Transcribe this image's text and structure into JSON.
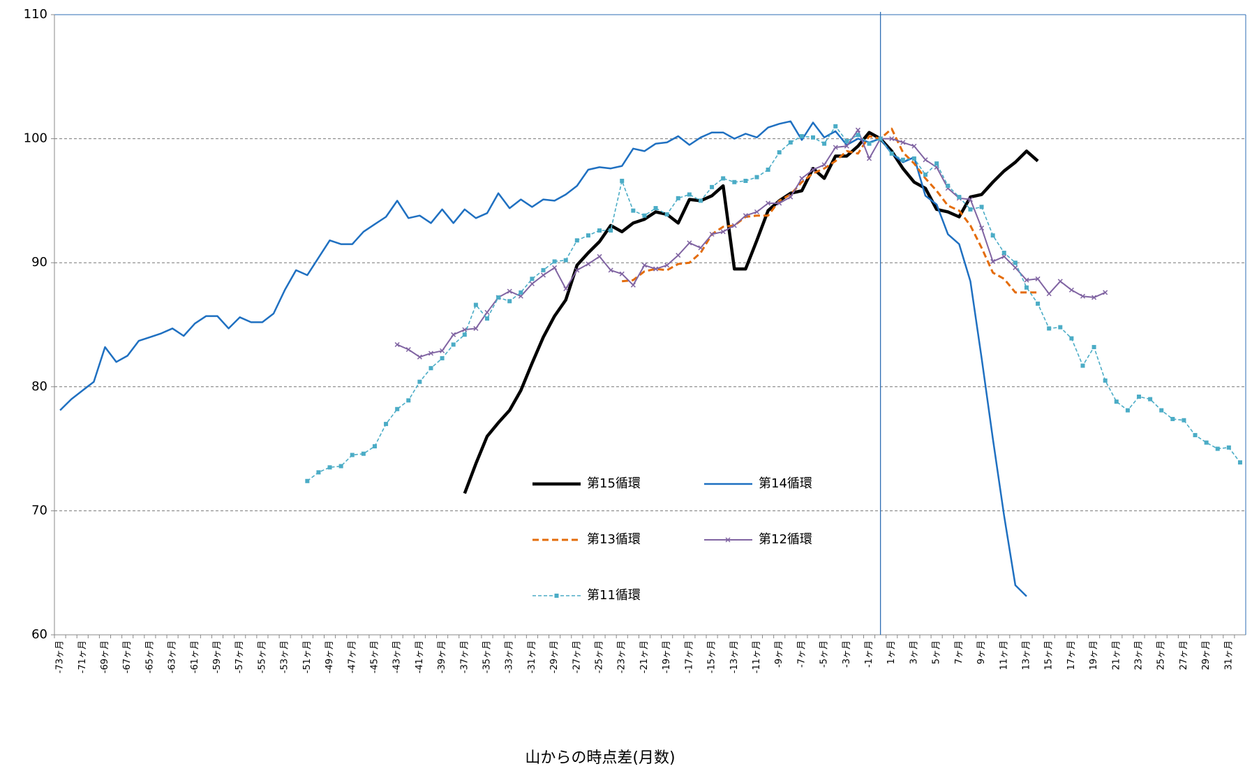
{
  "chart_data": {
    "type": "line",
    "x_label": "山からの時点差(月数)",
    "categories": [
      "-73ヶ月",
      null,
      "-71ヶ月",
      null,
      "-69ヶ月",
      null,
      "-67ヶ月",
      null,
      "-65ヶ月",
      null,
      "-63ヶ月",
      null,
      "-61ヶ月",
      null,
      "-59ヶ月",
      null,
      "-57ヶ月",
      null,
      "-55ヶ月",
      null,
      "-53ヶ月",
      null,
      "-51ヶ月",
      null,
      "-49ヶ月",
      null,
      "-47ヶ月",
      null,
      "-45ヶ月",
      null,
      "-43ヶ月",
      null,
      "-41ヶ月",
      null,
      "-39ヶ月",
      null,
      "-37ヶ月",
      null,
      "-35ヶ月",
      null,
      "-33ヶ月",
      null,
      "-31ヶ月",
      null,
      "-29ヶ月",
      null,
      "-27ヶ月",
      null,
      "-25ヶ月",
      null,
      "-23ヶ月",
      null,
      "-21ヶ月",
      null,
      "-19ヶ月",
      null,
      "-17ヶ月",
      null,
      "-15ヶ月",
      null,
      "-13ヶ月",
      null,
      "-11ヶ月",
      null,
      "-9ヶ月",
      null,
      "-7ヶ月",
      null,
      "-5ヶ月",
      null,
      "-3ヶ月",
      null,
      "-1ヶ月",
      null,
      "1ヶ月",
      null,
      "3ヶ月",
      null,
      "5ヶ月",
      null,
      "7ヶ月",
      null,
      "9ヶ月",
      null,
      "11ヶ月",
      null,
      "13ヶ月",
      null,
      "15ヶ月",
      null,
      "17ヶ月",
      null,
      "19ヶ月",
      null,
      "21ヶ月",
      null,
      "23ヶ月",
      null,
      "25ヶ月",
      null,
      "27ヶ月",
      null,
      "29ヶ月",
      null,
      "31ヶ月",
      null
    ],
    "series": [
      {
        "name": "第15循環",
        "color": "#000000",
        "values": [
          null,
          null,
          null,
          null,
          null,
          null,
          null,
          null,
          null,
          null,
          null,
          null,
          null,
          null,
          null,
          null,
          null,
          null,
          null,
          null,
          null,
          null,
          null,
          null,
          null,
          null,
          null,
          null,
          null,
          null,
          null,
          null,
          null,
          null,
          null,
          null,
          71.4,
          73.8,
          76.0,
          77.1,
          78.1,
          79.7,
          81.9,
          84.0,
          85.7,
          87.0,
          89.8,
          90.8,
          91.7,
          93.0,
          92.5,
          93.2,
          93.5,
          94.1,
          93.9,
          93.2,
          95.1,
          95.0,
          95.4,
          96.2,
          89.5,
          89.5,
          91.8,
          94.2,
          95.0,
          95.6,
          95.8,
          97.6,
          96.8,
          98.6,
          98.6,
          99.4,
          100.5,
          100,
          99.0,
          97.6,
          96.5,
          96.0,
          94.3,
          94.1,
          93.7,
          95.3,
          95.5,
          96.5,
          97.4,
          98.1,
          99.0,
          98.2,
          null,
          null,
          null,
          null,
          null,
          null,
          null,
          null,
          null,
          null,
          null,
          null,
          null,
          null,
          null,
          null,
          null,
          null
        ]
      },
      {
        "name": "第14循環",
        "color": "#1f70c1",
        "values": [
          78.1,
          79.0,
          79.7,
          80.4,
          83.2,
          82.0,
          82.5,
          83.7,
          84.0,
          84.3,
          84.7,
          84.1,
          85.1,
          85.7,
          85.7,
          84.7,
          85.6,
          85.2,
          85.2,
          85.9,
          87.8,
          89.4,
          89.0,
          90.4,
          91.8,
          91.5,
          91.5,
          92.5,
          93.1,
          93.7,
          95.0,
          93.6,
          93.8,
          93.2,
          94.3,
          93.2,
          94.3,
          93.6,
          94.0,
          95.6,
          94.4,
          95.1,
          94.5,
          95.1,
          95.0,
          95.5,
          96.2,
          97.5,
          97.7,
          97.6,
          97.8,
          99.2,
          99.0,
          99.6,
          99.7,
          100.2,
          99.5,
          100.1,
          100.5,
          100.5,
          100.0,
          100.4,
          100.1,
          100.9,
          101.2,
          101.4,
          99.9,
          101.3,
          100.1,
          100.6,
          99.5,
          100.0,
          99.7,
          100,
          98.8,
          98.1,
          98.5,
          95.4,
          94.7,
          92.3,
          91.5,
          88.5,
          82.3,
          75.8,
          69.6,
          64.0,
          63.1,
          null,
          null,
          null,
          null,
          null,
          null,
          null,
          null,
          null,
          null,
          null,
          null,
          null,
          null,
          null,
          null,
          null,
          null,
          null
        ]
      },
      {
        "name": "第13循環",
        "color": "#e46c0a",
        "values": [
          null,
          null,
          null,
          null,
          null,
          null,
          null,
          null,
          null,
          null,
          null,
          null,
          null,
          null,
          null,
          null,
          null,
          null,
          null,
          null,
          null,
          null,
          null,
          null,
          null,
          null,
          null,
          null,
          null,
          null,
          null,
          null,
          null,
          null,
          null,
          null,
          null,
          null,
          null,
          null,
          null,
          null,
          null,
          null,
          null,
          null,
          null,
          null,
          null,
          null,
          88.5,
          88.6,
          89.3,
          89.5,
          89.4,
          89.9,
          90.0,
          90.8,
          92.3,
          92.9,
          93.0,
          93.7,
          93.8,
          93.8,
          95.0,
          95.5,
          96.5,
          97.2,
          97.6,
          98.2,
          99.0,
          98.8,
          100.2,
          100,
          100.8,
          98.9,
          98.0,
          96.8,
          95.8,
          94.6,
          94.2,
          93.0,
          91.2,
          89.2,
          88.7,
          87.6,
          87.6,
          87.6,
          null,
          null,
          null,
          null,
          null,
          null,
          null,
          null,
          null,
          null,
          null,
          null,
          null,
          null,
          null,
          null,
          null,
          null
        ]
      },
      {
        "name": "第12循環",
        "color": "#8064a2",
        "values": [
          null,
          null,
          null,
          null,
          null,
          null,
          null,
          null,
          null,
          null,
          null,
          null,
          null,
          null,
          null,
          null,
          null,
          null,
          null,
          null,
          null,
          null,
          null,
          null,
          null,
          null,
          null,
          null,
          null,
          null,
          83.4,
          83.0,
          82.4,
          82.7,
          82.9,
          84.2,
          84.6,
          84.7,
          86.0,
          87.2,
          87.7,
          87.3,
          88.3,
          89.0,
          89.6,
          87.9,
          89.4,
          89.9,
          90.5,
          89.4,
          89.1,
          88.2,
          89.8,
          89.5,
          89.8,
          90.6,
          91.6,
          91.2,
          92.3,
          92.5,
          93.0,
          93.8,
          94.1,
          94.8,
          94.8,
          95.3,
          96.8,
          97.5,
          97.9,
          99.3,
          99.4,
          100.7,
          98.4,
          100,
          100.0,
          99.7,
          99.4,
          98.3,
          97.7,
          96.0,
          95.2,
          95.1,
          92.8,
          90.1,
          90.5,
          89.6,
          88.6,
          88.7,
          87.5,
          88.5,
          87.8,
          87.3,
          87.2,
          87.6,
          null,
          null,
          null,
          null,
          null,
          null,
          null,
          null,
          null,
          null,
          null,
          null
        ]
      },
      {
        "name": "第11循環",
        "color": "#4bacc6",
        "values": [
          null,
          null,
          null,
          null,
          null,
          null,
          null,
          null,
          null,
          null,
          null,
          null,
          null,
          null,
          null,
          null,
          null,
          null,
          null,
          null,
          null,
          null,
          72.4,
          73.1,
          73.5,
          73.6,
          74.5,
          74.6,
          75.2,
          77.0,
          78.2,
          78.9,
          80.4,
          81.5,
          82.3,
          83.4,
          84.2,
          86.6,
          85.5,
          87.2,
          86.9,
          87.6,
          88.7,
          89.4,
          90.1,
          90.2,
          91.8,
          92.2,
          92.6,
          92.6,
          96.6,
          94.2,
          93.8,
          94.4,
          93.9,
          95.2,
          95.5,
          95.0,
          96.1,
          96.8,
          96.5,
          96.6,
          96.9,
          97.5,
          98.9,
          99.7,
          100.2,
          100.1,
          99.6,
          101.0,
          99.8,
          100.3,
          99.6,
          100,
          98.8,
          98.3,
          98.4,
          97.1,
          98.0,
          96.2,
          95.3,
          94.3,
          94.5,
          92.2,
          90.8,
          90.0,
          88.0,
          86.7,
          84.7,
          84.8,
          83.9,
          81.7,
          83.2,
          80.5,
          78.8,
          78.1,
          79.2,
          79.0,
          78.1,
          77.4,
          77.3,
          76.1,
          75.5,
          75.0,
          75.1,
          73.9
        ]
      }
    ],
    "ylim": [
      60,
      110
    ],
    "yticks": [
      60,
      70,
      80,
      90,
      100,
      110
    ],
    "grid": true,
    "legend": "center"
  }
}
